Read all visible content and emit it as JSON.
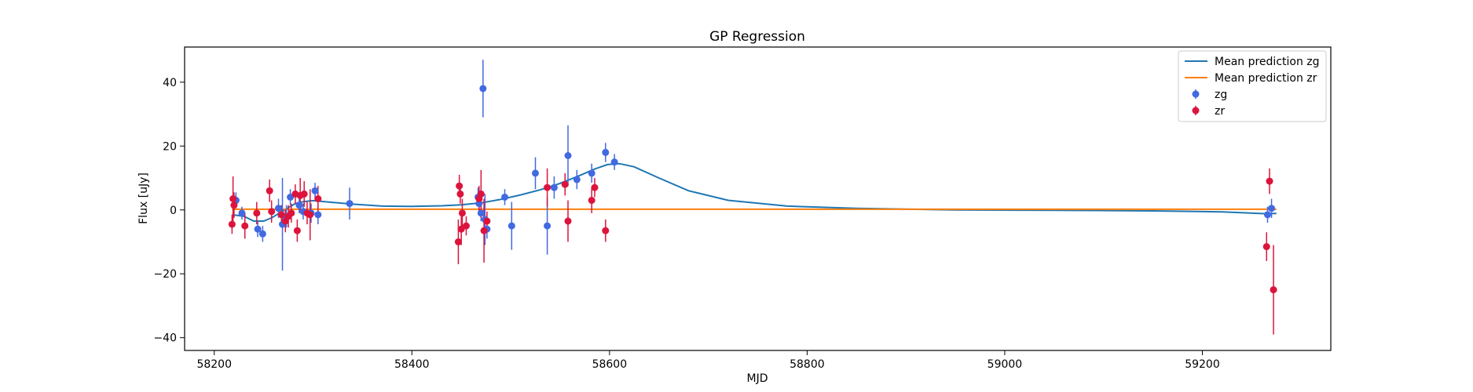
{
  "chart_data": {
    "type": "scatter",
    "title": "GP Regression",
    "xlabel": "MJD",
    "ylabel": "Flux [uJy]",
    "xlim": [
      58170,
      59330
    ],
    "ylim": [
      -44,
      51
    ],
    "xticks": [
      58200,
      58400,
      58600,
      58800,
      59000,
      59200
    ],
    "yticks": [
      -40,
      -20,
      0,
      20,
      40
    ],
    "grid": false,
    "legend_position": "top-right",
    "legend": [
      "Mean prediction zg",
      "Mean prediction zr",
      "zg",
      "zr"
    ],
    "lines": [
      {
        "name": "Mean prediction zg",
        "color": "#1f77b4",
        "x": [
          58218,
          58230,
          58240,
          58250,
          58258,
          58266,
          58274,
          58282,
          58290,
          58300,
          58315,
          58340,
          58370,
          58400,
          58430,
          58450,
          58470,
          58490,
          58510,
          58530,
          58550,
          58570,
          58585,
          58598,
          58610,
          58625,
          58650,
          58680,
          58720,
          58780,
          58850,
          58950,
          59050,
          59150,
          59220,
          59265,
          59275
        ],
        "y": [
          -1.5,
          -2.0,
          -3.5,
          -3.5,
          -2.5,
          -1.0,
          0.5,
          2.0,
          2.6,
          2.9,
          2.5,
          1.8,
          1.2,
          1.1,
          1.3,
          1.6,
          2.2,
          3.3,
          4.7,
          6.3,
          8.3,
          10.8,
          12.8,
          14.2,
          14.5,
          13.5,
          10.0,
          6.0,
          3.0,
          1.2,
          0.5,
          0.0,
          -0.1,
          -0.3,
          -0.6,
          -1.2,
          -1.1
        ]
      },
      {
        "name": "Mean prediction zr",
        "color": "#ff7f0e",
        "x": [
          58218,
          59275
        ],
        "y": [
          0.2,
          0.2
        ]
      }
    ],
    "series": [
      {
        "name": "zg",
        "color": "#4169e1",
        "points": [
          {
            "x": 58222,
            "y": 3.0,
            "err": 2.5
          },
          {
            "x": 58228,
            "y": -1.0,
            "err": 2.0
          },
          {
            "x": 58244,
            "y": -6.0,
            "err": 2.5
          },
          {
            "x": 58249,
            "y": -7.5,
            "err": 2.5
          },
          {
            "x": 58265,
            "y": 0.5,
            "err": 3.0
          },
          {
            "x": 58269,
            "y": -4.5,
            "err": 14.5
          },
          {
            "x": 58273,
            "y": -2.0,
            "err": 3.5
          },
          {
            "x": 58277,
            "y": 4.0,
            "err": 2.5
          },
          {
            "x": 58286,
            "y": 1.5,
            "err": 2.5
          },
          {
            "x": 58290,
            "y": -0.5,
            "err": 2.5
          },
          {
            "x": 58298,
            "y": -1.0,
            "err": 3.0
          },
          {
            "x": 58302,
            "y": 6.0,
            "err": 2.5
          },
          {
            "x": 58305,
            "y": -1.5,
            "err": 3.0
          },
          {
            "x": 58337,
            "y": 2.0,
            "err": 5.0
          },
          {
            "x": 58467,
            "y": 4.0,
            "err": 3.0
          },
          {
            "x": 58468,
            "y": 2.0,
            "err": 3.0
          },
          {
            "x": 58470,
            "y": -1.0,
            "err": 2.5
          },
          {
            "x": 58472,
            "y": 38.0,
            "err": 9.0
          },
          {
            "x": 58474,
            "y": -3.0,
            "err": 8.0
          },
          {
            "x": 58476,
            "y": -6.0,
            "err": 3.0
          },
          {
            "x": 58494,
            "y": 4.0,
            "err": 2.5
          },
          {
            "x": 58501,
            "y": -5.0,
            "err": 7.5
          },
          {
            "x": 58525,
            "y": 11.5,
            "err": 5.0
          },
          {
            "x": 58537,
            "y": -5.0,
            "err": 9.0
          },
          {
            "x": 58544,
            "y": 7.0,
            "err": 3.5
          },
          {
            "x": 58558,
            "y": 17.0,
            "err": 9.5
          },
          {
            "x": 58567,
            "y": 9.5,
            "err": 3.0
          },
          {
            "x": 58582,
            "y": 11.5,
            "err": 3.0
          },
          {
            "x": 58596,
            "y": 18.0,
            "err": 3.0
          },
          {
            "x": 58605,
            "y": 15.0,
            "err": 2.5
          },
          {
            "x": 59266,
            "y": -1.5,
            "err": 2.5
          },
          {
            "x": 59270,
            "y": 0.5,
            "err": 3.0
          }
        ]
      },
      {
        "name": "zr",
        "color": "#dc143c",
        "points": [
          {
            "x": 58218,
            "y": -4.5,
            "err": 3.0
          },
          {
            "x": 58219,
            "y": 3.5,
            "err": 7.0
          },
          {
            "x": 58220,
            "y": 1.5,
            "err": 4.0
          },
          {
            "x": 58231,
            "y": -5.0,
            "err": 4.0
          },
          {
            "x": 58243,
            "y": -1.0,
            "err": 3.5
          },
          {
            "x": 58256,
            "y": 6.0,
            "err": 3.5
          },
          {
            "x": 58258,
            "y": -0.5,
            "err": 3.5
          },
          {
            "x": 58268,
            "y": -1.5,
            "err": 3.0
          },
          {
            "x": 58272,
            "y": -3.5,
            "err": 3.5
          },
          {
            "x": 58275,
            "y": -2.0,
            "err": 3.5
          },
          {
            "x": 58278,
            "y": -1.0,
            "err": 3.0
          },
          {
            "x": 58282,
            "y": 5.0,
            "err": 3.0
          },
          {
            "x": 58284,
            "y": -6.5,
            "err": 3.5
          },
          {
            "x": 58287,
            "y": 4.5,
            "err": 5.5
          },
          {
            "x": 58291,
            "y": 5.0,
            "err": 4.0
          },
          {
            "x": 58294,
            "y": -1.0,
            "err": 3.5
          },
          {
            "x": 58297,
            "y": -1.5,
            "err": 8.0
          },
          {
            "x": 58305,
            "y": 3.5,
            "err": 4.0
          },
          {
            "x": 58447,
            "y": -10.0,
            "err": 7.0
          },
          {
            "x": 58448,
            "y": 7.5,
            "err": 3.5
          },
          {
            "x": 58449,
            "y": 5.0,
            "err": 3.0
          },
          {
            "x": 58450,
            "y": -6.0,
            "err": 5.0
          },
          {
            "x": 58451,
            "y": -1.0,
            "err": 4.5
          },
          {
            "x": 58455,
            "y": -5.0,
            "err": 3.0
          },
          {
            "x": 58468,
            "y": 3.5,
            "err": 4.0
          },
          {
            "x": 58470,
            "y": 5.0,
            "err": 7.5
          },
          {
            "x": 58473,
            "y": -6.5,
            "err": 10.0
          },
          {
            "x": 58476,
            "y": -3.5,
            "err": 3.0
          },
          {
            "x": 58537,
            "y": 7.0,
            "err": 6.0
          },
          {
            "x": 58555,
            "y": 8.0,
            "err": 3.5
          },
          {
            "x": 58558,
            "y": -3.5,
            "err": 6.5
          },
          {
            "x": 58582,
            "y": 3.0,
            "err": 4.0
          },
          {
            "x": 58585,
            "y": 7.0,
            "err": 3.0
          },
          {
            "x": 58596,
            "y": -6.5,
            "err": 3.5
          },
          {
            "x": 59265,
            "y": -11.5,
            "err": 4.5
          },
          {
            "x": 59268,
            "y": 9.0,
            "err": 4.0
          },
          {
            "x": 59272,
            "y": -25.0,
            "err": 14.0
          }
        ]
      }
    ]
  }
}
